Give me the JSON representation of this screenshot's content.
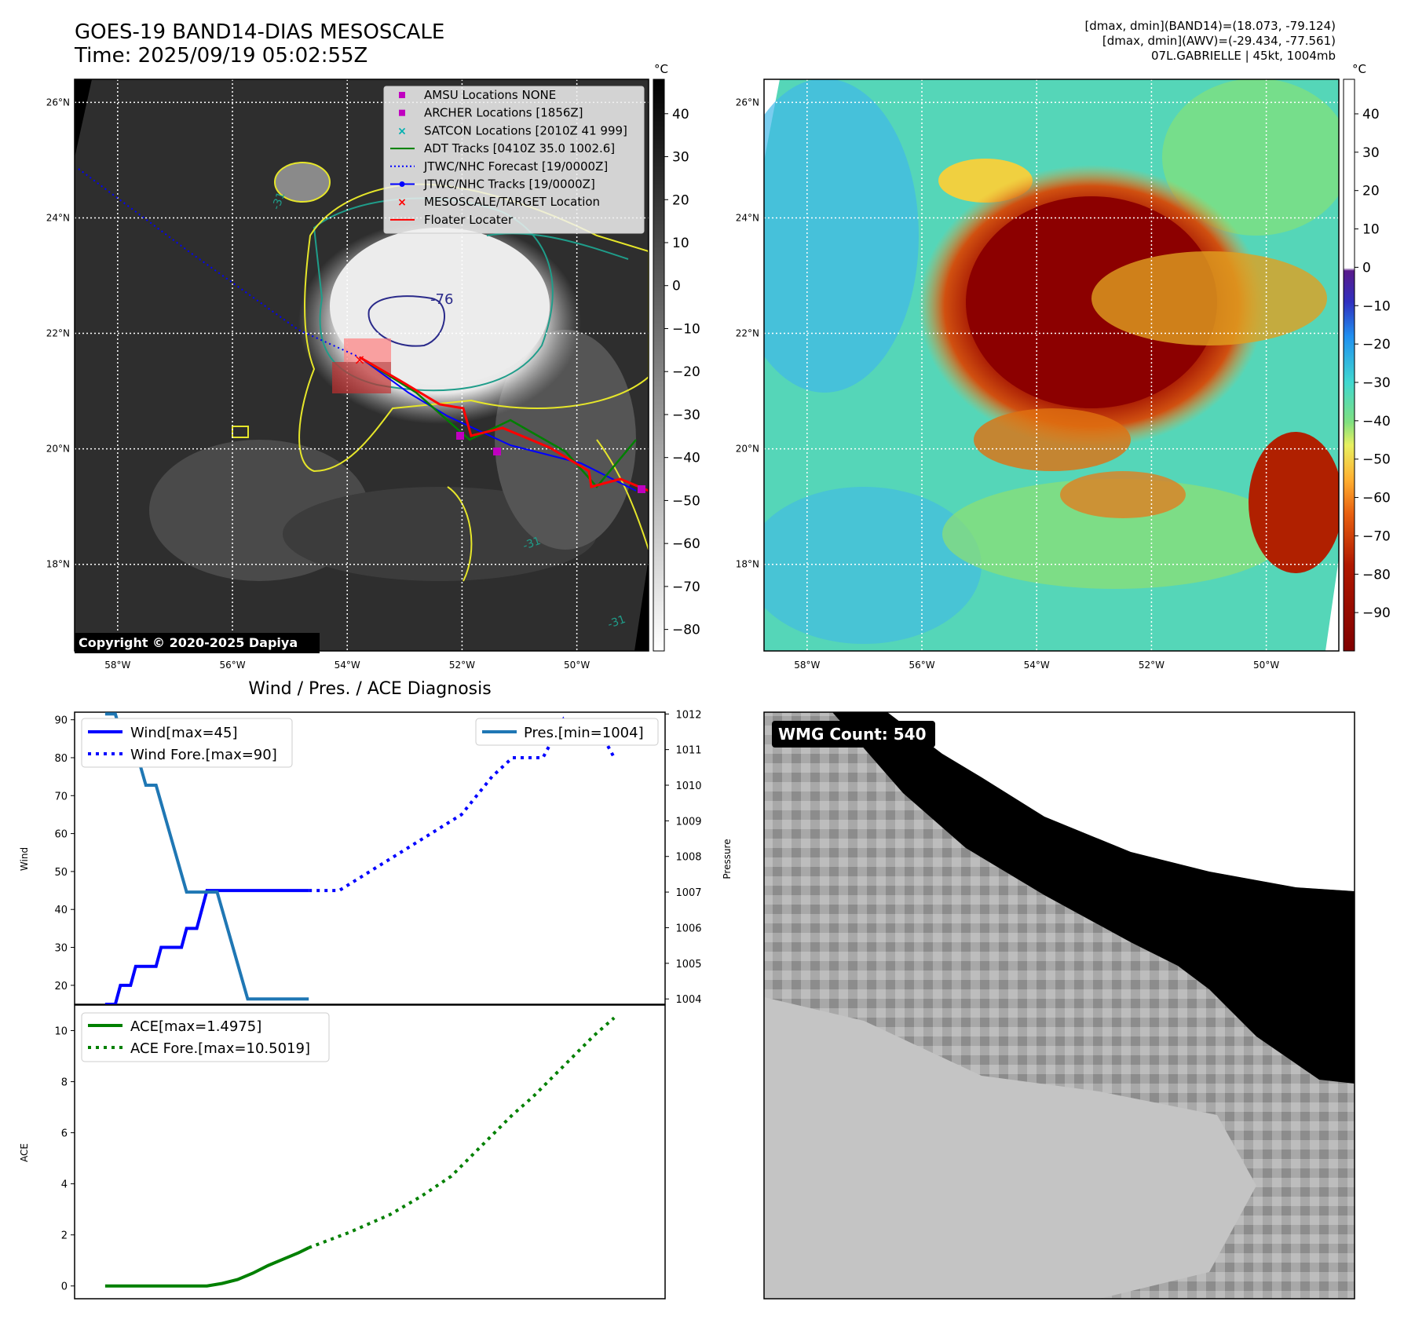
{
  "header": {
    "title": "GOES-19 BAND14-DIAS MESOSCALE",
    "time": "Time: 2025/09/19 05:02:55Z",
    "info_band14": "[dmax, dmin](BAND14)=(18.073, -79.124)",
    "info_awv": "[dmax, dmin](AWV)=(-29.434, -77.561)",
    "info_storm": "07L.GABRIELLE | 45kt, 1004mb"
  },
  "map": {
    "lat_labels": [
      "26°N",
      "24°N",
      "22°N",
      "20°N",
      "18°N"
    ],
    "lat_values": [
      26,
      24,
      22,
      20,
      18
    ],
    "lon_labels": [
      "58°W",
      "56°W",
      "54°W",
      "52°W",
      "50°W"
    ],
    "lon_values": [
      -58,
      -56,
      -54,
      -52,
      -50
    ],
    "extent": {
      "lon_min": -58.75,
      "lon_max": -48.75,
      "lat_min": 16.5,
      "lat_max": 26.4
    },
    "contour_labels": [
      "-76",
      "-31",
      "-31",
      "-31"
    ],
    "copyright": "Copyright © 2020-2025 Dapiya"
  },
  "legend": {
    "items": [
      {
        "label": "AMSU Locations NONE",
        "symbol": "square",
        "color": "#c000c0"
      },
      {
        "label": "ARCHER Locations [1856Z]",
        "symbol": "square",
        "color": "#c000c0"
      },
      {
        "label": "SATCON Locations [2010Z 41 999]",
        "symbol": "x",
        "color": "#00b0b0"
      },
      {
        "label": "ADT Tracks [0410Z 35.0 1002.6]",
        "symbol": "line",
        "color": "#008000"
      },
      {
        "label": "JTWC/NHC Forecast [19/0000Z]",
        "symbol": "dotted",
        "color": "#0000ff"
      },
      {
        "label": "JTWC/NHC Tracks [19/0000Z]",
        "symbol": "line-dot",
        "color": "#0000ff"
      },
      {
        "label": "MESOSCALE/TARGET Location",
        "symbol": "x",
        "color": "#ff0000"
      },
      {
        "label": "Floater Locater",
        "symbol": "line",
        "color": "#ff0000"
      }
    ]
  },
  "colorbar_gray": {
    "unit": "°C",
    "ticks": [
      "40",
      "30",
      "20",
      "10",
      "0",
      "−10",
      "−20",
      "−30",
      "−40",
      "−50",
      "−60",
      "−70",
      "−80"
    ],
    "tick_values": [
      40,
      30,
      20,
      10,
      0,
      -10,
      -20,
      -30,
      -40,
      -50,
      -60,
      -70,
      -80
    ],
    "range": [
      48,
      -85
    ]
  },
  "colorbar_color": {
    "unit": "°C",
    "ticks": [
      "40",
      "30",
      "20",
      "10",
      "0",
      "−10",
      "−20",
      "−30",
      "−40",
      "−50",
      "−60",
      "−70",
      "−80",
      "−90"
    ],
    "tick_values": [
      40,
      30,
      20,
      10,
      0,
      -10,
      -20,
      -30,
      -40,
      -50,
      -60,
      -70,
      -80,
      -90
    ],
    "range": [
      49,
      -100
    ]
  },
  "chart_data": [
    {
      "type": "line",
      "title": "Wind / Pres. / ACE Diagnosis",
      "ylabel": "Wind",
      "ylabel_right": "Pressure",
      "ylim": [
        15,
        92
      ],
      "ylim_right": [
        1003.85,
        1012.05
      ],
      "yticks": [
        20,
        30,
        40,
        50,
        60,
        70,
        80,
        90
      ],
      "yticks_right": [
        1004,
        1005,
        1006,
        1007,
        1008,
        1009,
        1010,
        1011,
        1012
      ],
      "legend_left": [
        "Wind[max=45]",
        "Wind Fore.[max=90]"
      ],
      "legend_right": [
        "Pres.[min=1004]"
      ],
      "series": [
        {
          "name": "Wind[max=45]",
          "style": "solid",
          "color": "#0000ff",
          "x": [
            0,
            1,
            2,
            3,
            4,
            5,
            6,
            7,
            8,
            9,
            10,
            11,
            12,
            13,
            14,
            15,
            16,
            17,
            18,
            19,
            20,
            21,
            22,
            23,
            24,
            25,
            26,
            27,
            28,
            29,
            30,
            31,
            32,
            33,
            34,
            35,
            36,
            37,
            38,
            39,
            40
          ],
          "values": [
            15,
            15,
            15,
            20,
            20,
            20,
            25,
            25,
            25,
            25,
            25,
            30,
            30,
            30,
            30,
            30,
            35,
            35,
            35,
            40,
            45,
            45,
            45,
            45,
            45,
            45,
            45,
            45,
            45,
            45,
            45,
            45,
            45,
            45,
            45,
            45,
            45,
            45,
            45,
            45,
            45
          ]
        },
        {
          "name": "Wind Fore.[max=90]",
          "style": "dotted",
          "color": "#0000ff",
          "x": [
            40,
            46,
            52,
            58,
            64,
            70,
            76,
            80,
            82,
            86,
            88,
            90,
            92,
            94,
            96,
            98,
            100
          ],
          "values": [
            45,
            45,
            50,
            55,
            60,
            65,
            75,
            80,
            80,
            80,
            85,
            90,
            85,
            85,
            85,
            85,
            80
          ]
        },
        {
          "name": "Pres.[min=1004]",
          "style": "solid",
          "color": "#1f77b4",
          "axis": "right",
          "x": [
            0,
            2,
            4,
            6,
            8,
            10,
            12,
            16,
            20,
            22,
            24,
            26,
            28,
            30,
            32,
            34,
            36,
            38,
            40
          ],
          "values": [
            1012,
            1012,
            1011,
            1011,
            1010,
            1010,
            1009,
            1007,
            1007,
            1007,
            1006,
            1005,
            1004,
            1004,
            1004,
            1004,
            1004,
            1004,
            1004
          ]
        }
      ]
    },
    {
      "type": "line",
      "ylabel": "ACE",
      "ylim": [
        -0.5,
        11
      ],
      "yticks": [
        0,
        2,
        4,
        6,
        8,
        10
      ],
      "legend": [
        "ACE[max=1.4975]",
        "ACE Fore.[max=10.5019]"
      ],
      "series": [
        {
          "name": "ACE[max=1.4975]",
          "style": "solid",
          "color": "#008000",
          "x": [
            0,
            5,
            10,
            15,
            20,
            23,
            26,
            29,
            32,
            35,
            38,
            40
          ],
          "values": [
            0,
            0,
            0,
            0,
            0,
            0.1,
            0.25,
            0.5,
            0.8,
            1.05,
            1.3,
            1.4975
          ]
        },
        {
          "name": "ACE Fore.[max=10.5019]",
          "style": "dotted",
          "color": "#008000",
          "x": [
            40,
            48,
            56,
            62,
            68,
            72,
            76,
            80,
            84,
            88,
            92,
            96,
            100
          ],
          "values": [
            1.4975,
            2.1,
            2.8,
            3.5,
            4.3,
            5.1,
            5.9,
            6.7,
            7.4,
            8.2,
            9.0,
            9.8,
            10.5019
          ]
        }
      ]
    }
  ],
  "wmg": {
    "count_label": "WMG Count: 540"
  }
}
